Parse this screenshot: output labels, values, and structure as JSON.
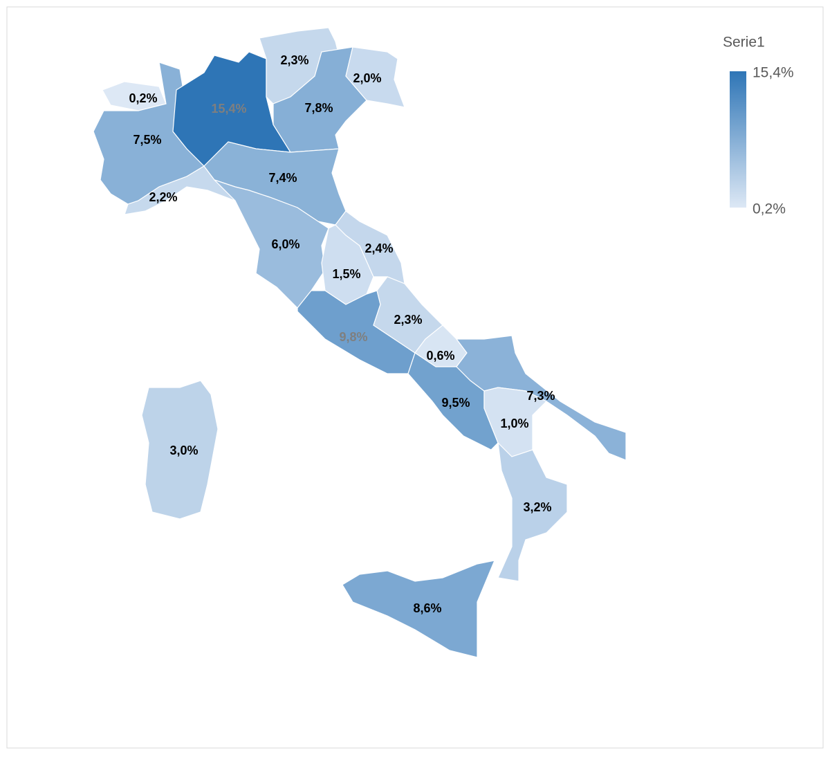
{
  "chart_data": {
    "type": "map",
    "series": [
      {
        "name": "Serie1",
        "values": [
          0.2,
          7.5,
          15.4,
          2.3,
          7.8,
          2.0,
          2.2,
          7.4,
          6.0,
          1.5,
          2.4,
          9.8,
          2.3,
          0.6,
          9.5,
          7.3,
          1.0,
          3.2,
          8.6,
          3.0
        ],
        "value_labels": [
          "0,2%",
          "7,5%",
          "15,4%",
          "2,3%",
          "7,8%",
          "2,0%",
          "2,2%",
          "7,4%",
          "6,0%",
          "1,5%",
          "2,4%",
          "9,8%",
          "2,3%",
          "0,6%",
          "9,5%",
          "7,3%",
          "1,0%",
          "3,2%",
          "8,6%",
          "3,0%"
        ]
      }
    ],
    "clim": [
      0.2,
      15.4
    ],
    "cticks": [
      {
        "value": 0.2,
        "label": "0,2%"
      },
      {
        "value": 15.4,
        "label": "15,4%"
      }
    ],
    "min_color": "#dde8f5",
    "max_color": "#2e75b6"
  }
}
